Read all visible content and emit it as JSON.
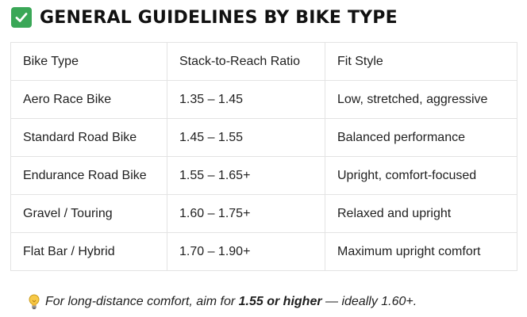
{
  "heading": {
    "icon": "check-mark-icon",
    "icon_color": "#3aa757",
    "title": "GENERAL GUIDELINES BY BIKE TYPE"
  },
  "table": {
    "columns": [
      "Bike Type",
      "Stack-to-Reach Ratio",
      "Fit Style"
    ],
    "rows": [
      [
        "Aero Race Bike",
        "1.35 – 1.45",
        "Low, stretched, aggressive"
      ],
      [
        "Standard Road Bike",
        "1.45 – 1.55",
        "Balanced performance"
      ],
      [
        "Endurance Road Bike",
        "1.55 – 1.65+",
        "Upright, comfort-focused"
      ],
      [
        "Gravel / Touring",
        "1.60 – 1.75+",
        "Relaxed and upright"
      ],
      [
        "Flat Bar / Hybrid",
        "1.70 – 1.90+",
        "Maximum upright comfort"
      ]
    ]
  },
  "tip": {
    "icon": "light-bulb-icon",
    "prefix": "For long-distance comfort, aim for ",
    "highlight": "1.55 or higher",
    "suffix": " — ideally 1.60+."
  }
}
